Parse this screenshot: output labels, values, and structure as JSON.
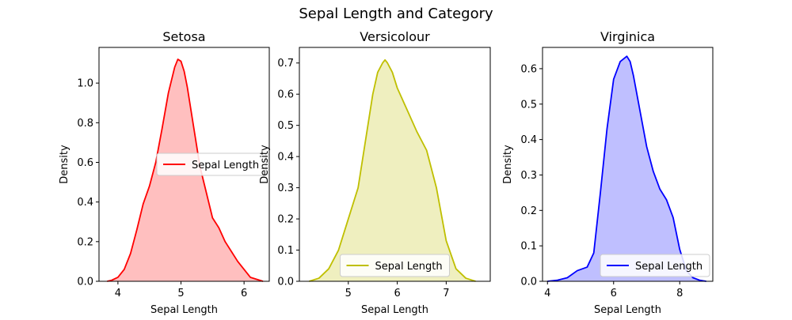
{
  "chart_data": {
    "type": "area",
    "title": "Sepal Length and Category",
    "panels": [
      {
        "title": "Setosa",
        "xlabel": "Sepal Length",
        "ylabel": "Density",
        "xlim": [
          3.7,
          6.4
        ],
        "ylim": [
          0,
          1.18
        ],
        "xticks": [
          4,
          5,
          6
        ],
        "yticks": [
          0.0,
          0.2,
          0.4,
          0.6,
          0.8,
          1.0
        ],
        "color": "#ff0000",
        "fill_color": "#ffbfbf",
        "legend": {
          "label": "Sepal Length",
          "placement": "center-right"
        },
        "series": [
          {
            "name": "Sepal Length",
            "x": [
              3.83,
              3.9,
              4.0,
              4.1,
              4.2,
              4.3,
              4.4,
              4.5,
              4.6,
              4.7,
              4.8,
              4.9,
              4.95,
              5.0,
              5.05,
              5.1,
              5.2,
              5.3,
              5.4,
              5.5,
              5.6,
              5.7,
              5.8,
              5.9,
              6.0,
              6.1,
              6.2,
              6.3
            ],
            "y": [
              0.0,
              0.005,
              0.02,
              0.06,
              0.14,
              0.26,
              0.39,
              0.48,
              0.6,
              0.77,
              0.95,
              1.08,
              1.12,
              1.11,
              1.06,
              0.98,
              0.78,
              0.58,
              0.45,
              0.32,
              0.27,
              0.2,
              0.15,
              0.1,
              0.06,
              0.02,
              0.01,
              0.0
            ]
          }
        ]
      },
      {
        "title": "Versicolour",
        "xlabel": "Sepal Length",
        "ylabel": "Density",
        "xlim": [
          4.0,
          7.9
        ],
        "ylim": [
          0,
          0.75
        ],
        "xticks": [
          5,
          6,
          7
        ],
        "yticks": [
          0.0,
          0.1,
          0.2,
          0.3,
          0.4,
          0.5,
          0.6,
          0.7
        ],
        "color": "#bfbf00",
        "fill_color": "#efefbf",
        "legend": {
          "label": "Sepal Length",
          "placement": "lower-center"
        },
        "series": [
          {
            "name": "Sepal Length",
            "x": [
              4.2,
              4.4,
              4.6,
              4.8,
              5.0,
              5.2,
              5.4,
              5.5,
              5.6,
              5.7,
              5.75,
              5.8,
              5.9,
              6.0,
              6.2,
              6.4,
              6.6,
              6.8,
              7.0,
              7.2,
              7.4,
              7.6
            ],
            "y": [
              0.0,
              0.01,
              0.04,
              0.1,
              0.2,
              0.3,
              0.5,
              0.6,
              0.67,
              0.7,
              0.71,
              0.7,
              0.67,
              0.62,
              0.55,
              0.48,
              0.42,
              0.3,
              0.13,
              0.04,
              0.01,
              0.0
            ]
          }
        ]
      },
      {
        "title": "Virginica",
        "xlabel": "Sepal Length",
        "ylabel": "Density",
        "xlim": [
          3.85,
          9.0
        ],
        "ylim": [
          0,
          0.66
        ],
        "xticks": [
          4,
          6,
          8
        ],
        "yticks": [
          0.0,
          0.1,
          0.2,
          0.3,
          0.4,
          0.5,
          0.6
        ],
        "color": "#0000ff",
        "fill_color": "#bfbfff",
        "legend": {
          "label": "Sepal Length",
          "placement": "lower-right"
        },
        "series": [
          {
            "name": "Sepal Length",
            "x": [
              4.0,
              4.3,
              4.6,
              4.9,
              5.2,
              5.4,
              5.6,
              5.8,
              6.0,
              6.2,
              6.4,
              6.5,
              6.6,
              6.8,
              7.0,
              7.2,
              7.4,
              7.6,
              7.8,
              8.0,
              8.2,
              8.4,
              8.6,
              8.8
            ],
            "y": [
              0.0,
              0.003,
              0.01,
              0.03,
              0.04,
              0.08,
              0.25,
              0.43,
              0.57,
              0.62,
              0.635,
              0.62,
              0.58,
              0.48,
              0.38,
              0.31,
              0.26,
              0.23,
              0.18,
              0.09,
              0.03,
              0.01,
              0.003,
              0.0
            ]
          }
        ]
      }
    ]
  }
}
